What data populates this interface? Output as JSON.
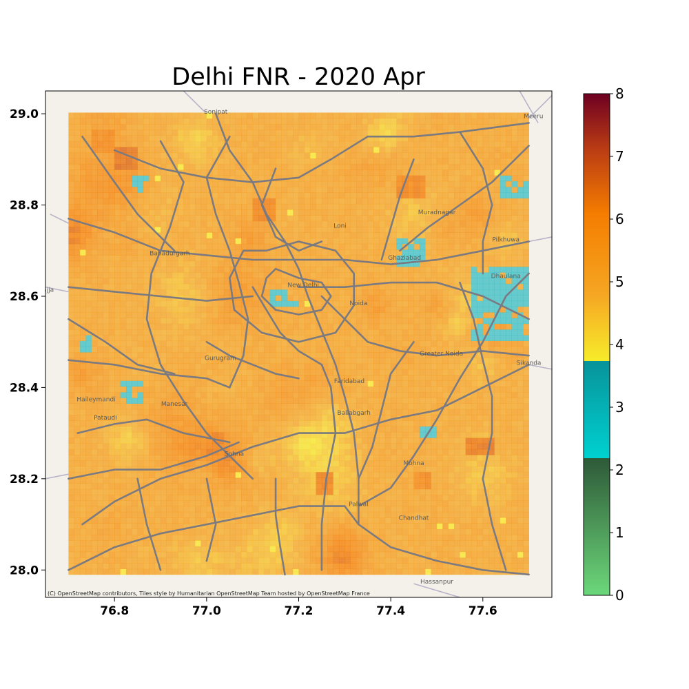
{
  "chart_data": {
    "type": "heatmap",
    "title": "Delhi FNR - 2020 Apr",
    "xlabel": "",
    "ylabel": "",
    "xlim": [
      76.65,
      77.75
    ],
    "ylim": [
      27.94,
      29.05
    ],
    "data_extent": {
      "lon": [
        76.7,
        77.7
      ],
      "lat": [
        27.99,
        29.0
      ]
    },
    "x_ticks": [
      76.8,
      77.0,
      77.2,
      77.4,
      77.6
    ],
    "x_tick_labels": [
      "76.8",
      "77.0",
      "77.2",
      "77.4",
      "77.6"
    ],
    "y_ticks": [
      28.0,
      28.2,
      28.4,
      28.6,
      28.8,
      29.0
    ],
    "y_tick_labels": [
      "28.0",
      "28.2",
      "28.4",
      "28.6",
      "28.8",
      "29.0"
    ],
    "colorbar": {
      "range": [
        0,
        8
      ],
      "ticks": [
        0,
        1,
        2,
        3,
        4,
        5,
        6,
        7,
        8
      ],
      "tick_labels": [
        "0",
        "1",
        "2",
        "3",
        "4",
        "5",
        "6",
        "7",
        "8"
      ],
      "segments": [
        {
          "from": 0,
          "to": 2.2,
          "colors": [
            "#6cd87a",
            "#2e5938"
          ]
        },
        {
          "from": 2.2,
          "to": 3.7,
          "colors": [
            "#00d1d1",
            "#07939a"
          ]
        },
        {
          "from": 3.7,
          "to": 8,
          "colors": [
            "#f7ec2a",
            "#f5a623",
            "#f57d00",
            "#b83a14",
            "#6e0022"
          ]
        }
      ]
    },
    "typical_value_range": [
      4.3,
      5.6
    ],
    "low_regions": [
      {
        "lon": [
          77.57,
          77.7
        ],
        "lat": [
          28.5,
          28.67
        ],
        "value": 3.1
      },
      {
        "lon": [
          77.64,
          77.7
        ],
        "lat": [
          28.82,
          28.86
        ],
        "value": 3.1
      },
      {
        "lon": [
          77.41,
          77.48
        ],
        "lat": [
          28.66,
          28.73
        ],
        "value": 3.2
      },
      {
        "lon": [
          77.14,
          77.2
        ],
        "lat": [
          28.58,
          28.62
        ],
        "value": 3.2
      },
      {
        "lon": [
          76.81,
          76.86
        ],
        "lat": [
          28.37,
          28.42
        ],
        "value": 3.1
      },
      {
        "lon": [
          76.72,
          76.75
        ],
        "lat": [
          28.48,
          28.51
        ],
        "value": 3.0
      },
      {
        "lon": [
          77.46,
          77.5
        ],
        "lat": [
          28.29,
          28.32
        ],
        "value": 3.1
      },
      {
        "lon": [
          76.84,
          76.87
        ],
        "lat": [
          28.83,
          28.86
        ],
        "value": 3.2
      }
    ],
    "high_regions": [
      {
        "lon": [
          76.8,
          76.85
        ],
        "lat": [
          28.88,
          28.93
        ],
        "value": 6.2
      },
      {
        "lon": [
          77.0,
          77.04
        ],
        "lat": [
          28.25,
          28.3
        ],
        "value": 6.0
      },
      {
        "lon": [
          77.56,
          77.62
        ],
        "lat": [
          28.25,
          28.29
        ],
        "value": 6.1
      },
      {
        "lon": [
          77.41,
          77.47
        ],
        "lat": [
          28.82,
          28.86
        ],
        "value": 5.9
      },
      {
        "lon": [
          77.1,
          77.15
        ],
        "lat": [
          28.77,
          28.81
        ],
        "value": 5.9
      },
      {
        "lon": [
          77.24,
          77.28
        ],
        "lat": [
          28.17,
          28.21
        ],
        "value": 5.9
      },
      {
        "lon": [
          77.45,
          77.49
        ],
        "lat": [
          28.18,
          28.22
        ],
        "value": 5.8
      },
      {
        "lon": [
          76.75,
          76.8
        ],
        "lat": [
          28.92,
          28.97
        ],
        "value": 5.8
      }
    ]
  },
  "basemap": {
    "places": [
      {
        "name": "Sonipat",
        "lon": 77.02,
        "lat": 29.0
      },
      {
        "name": "Meeru",
        "lon": 77.71,
        "lat": 28.99
      },
      {
        "name": "Bahadurgarh",
        "lon": 76.92,
        "lat": 28.69
      },
      {
        "name": "Jhajja",
        "lon": 76.65,
        "lat": 28.61
      },
      {
        "name": "Loni",
        "lon": 77.29,
        "lat": 28.75
      },
      {
        "name": "Muradnagar",
        "lon": 77.5,
        "lat": 28.78
      },
      {
        "name": "Pilkhuwa",
        "lon": 77.65,
        "lat": 28.72
      },
      {
        "name": "Ghaziabad",
        "lon": 77.43,
        "lat": 28.68
      },
      {
        "name": "Dhaulana",
        "lon": 77.65,
        "lat": 28.64
      },
      {
        "name": "New Delhi",
        "lon": 77.21,
        "lat": 28.62
      },
      {
        "name": "Noida",
        "lon": 77.33,
        "lat": 28.58
      },
      {
        "name": "Greater Noida",
        "lon": 77.51,
        "lat": 28.47
      },
      {
        "name": "Sikanda",
        "lon": 77.7,
        "lat": 28.45
      },
      {
        "name": "Gurugram",
        "lon": 77.03,
        "lat": 28.46
      },
      {
        "name": "Faridabad",
        "lon": 77.31,
        "lat": 28.41
      },
      {
        "name": "Manesar",
        "lon": 76.93,
        "lat": 28.36
      },
      {
        "name": "Haileymandi",
        "lon": 76.76,
        "lat": 28.37
      },
      {
        "name": "Pataudi",
        "lon": 76.78,
        "lat": 28.33
      },
      {
        "name": "Ballabgarh",
        "lon": 77.32,
        "lat": 28.34
      },
      {
        "name": "Sohna",
        "lon": 77.06,
        "lat": 28.25
      },
      {
        "name": "Mohna",
        "lon": 77.45,
        "lat": 28.23
      },
      {
        "name": "Palwal",
        "lon": 77.33,
        "lat": 28.14
      },
      {
        "name": "Chandhat",
        "lon": 77.45,
        "lat": 28.11
      },
      {
        "name": "Hassanpur",
        "lon": 77.5,
        "lat": 27.97
      }
    ],
    "attribution": "(C) OpenStreetMap contributors, Tiles style by Humanitarian OpenStreetMap Team hosted by OpenStreetMap France"
  },
  "colors": {
    "map_background": "#f3f1ea",
    "road": "#7a7a80",
    "low_fill": "#3fbfc4"
  }
}
